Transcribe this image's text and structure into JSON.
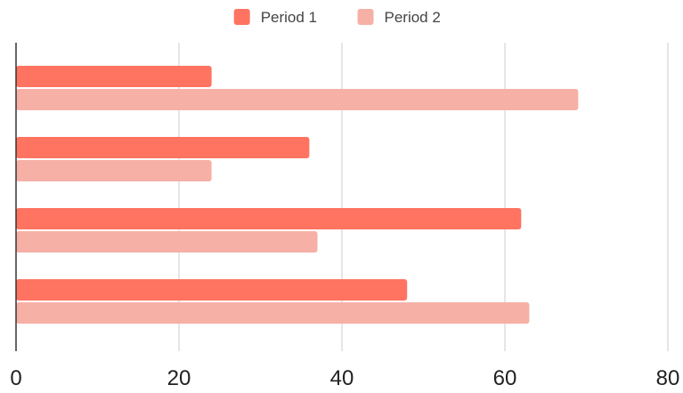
{
  "chart_data": {
    "type": "bar",
    "orientation": "horizontal",
    "title": "",
    "xlabel": "",
    "ylabel": "",
    "categories": [
      "",
      "",
      "",
      ""
    ],
    "series": [
      {
        "name": "Period 1",
        "color": "#ff7361",
        "values": [
          24,
          36,
          62,
          48
        ]
      },
      {
        "name": "Period 2",
        "color": "#f6b0a6",
        "values": [
          69,
          24,
          37,
          63
        ]
      }
    ],
    "xlim": [
      0,
      80
    ],
    "x_ticks": [
      0,
      20,
      40,
      60,
      80
    ],
    "grid": "vertical",
    "legend_position": "top-center"
  }
}
